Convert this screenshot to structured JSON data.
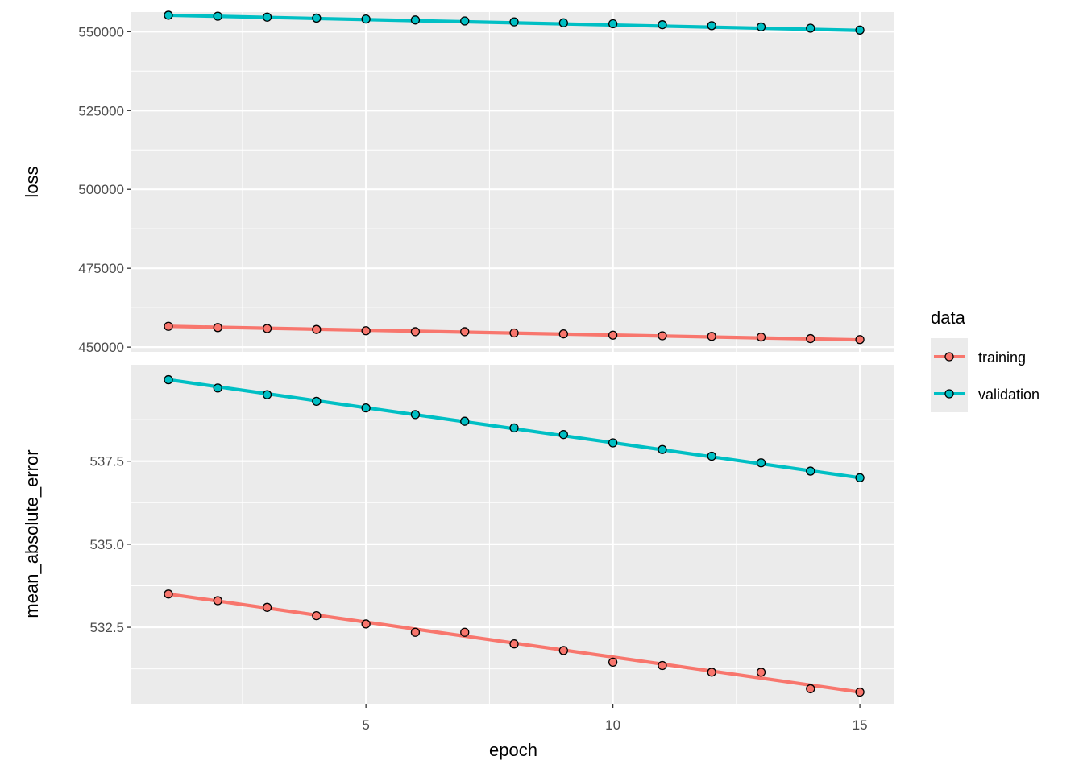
{
  "chart_data": {
    "type": "line",
    "xlabel": "epoch",
    "x": [
      1,
      2,
      3,
      4,
      5,
      6,
      7,
      8,
      9,
      10,
      11,
      12,
      13,
      14,
      15
    ],
    "x_ticks": [
      5,
      10,
      15
    ],
    "x_tick_labels": [
      "5",
      "10",
      "15"
    ],
    "xlim": [
      0.25,
      15.7
    ],
    "grid": true,
    "legend": {
      "title": "data",
      "placement": "right",
      "entries": [
        "training",
        "validation"
      ]
    },
    "colors": {
      "training": "#F8766D",
      "validation": "#00BFC4",
      "panel_bg": "#EBEBEB",
      "grid": "#FFFFFF"
    },
    "panels": [
      {
        "ylabel": "loss",
        "ylim": [
          448500,
          556200
        ],
        "y_ticks": [
          450000,
          475000,
          500000,
          525000,
          550000
        ],
        "y_tick_labels": [
          "450000",
          "475000",
          "500000",
          "525000",
          "550000"
        ],
        "series": [
          {
            "name": "training",
            "points": [
              456600,
              456200,
              455900,
              455600,
              455200,
              454900,
              454900,
              454500,
              454200,
              453800,
              453600,
              453400,
              453200,
              452700,
              452400
            ],
            "trend": [
              456600,
              452300
            ]
          },
          {
            "name": "validation",
            "points": [
              555200,
              554900,
              554600,
              554300,
              554000,
              553700,
              553400,
              553100,
              552800,
              552500,
              552200,
              551900,
              551500,
              551100,
              550500
            ],
            "trend": [
              555200,
              550400
            ]
          }
        ]
      },
      {
        "ylabel": "mean_absolute_error",
        "ylim": [
          530.2,
          540.4
        ],
        "y_ticks": [
          532.5,
          535.0,
          537.5
        ],
        "y_tick_labels": [
          "532.5",
          "535.0",
          "537.5"
        ],
        "series": [
          {
            "name": "training",
            "points": [
              533.5,
              533.3,
              533.1,
              532.85,
              532.6,
              532.35,
              532.35,
              532.0,
              531.8,
              531.45,
              531.35,
              531.15,
              531.15,
              530.65,
              530.55
            ],
            "trend": [
              533.5,
              530.55
            ]
          },
          {
            "name": "validation",
            "points": [
              539.95,
              539.7,
              539.5,
              539.3,
              539.1,
              538.9,
              538.7,
              538.5,
              538.3,
              538.05,
              537.85,
              537.65,
              537.45,
              537.2,
              537.0
            ],
            "trend": [
              539.95,
              537.0
            ]
          }
        ]
      }
    ]
  }
}
